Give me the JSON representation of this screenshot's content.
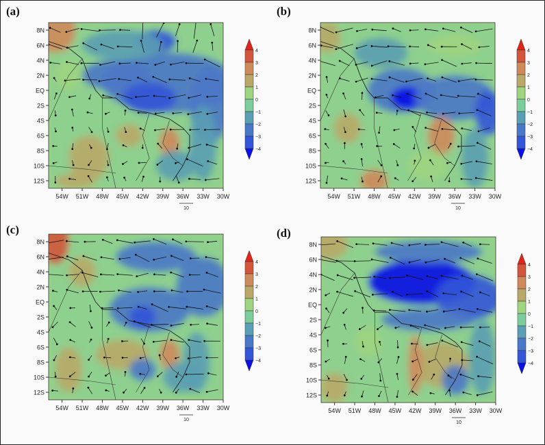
{
  "panels": [
    {
      "label": "(a)"
    },
    {
      "label": "(b)"
    },
    {
      "label": "(c)"
    },
    {
      "label": "(d)"
    }
  ],
  "axes": {
    "lat_ticks": [
      "8N",
      "6N",
      "4N",
      "2N",
      "EQ",
      "2S",
      "4S",
      "6S",
      "8S",
      "10S",
      "12S"
    ],
    "lon_ticks": [
      "54W",
      "51W",
      "48W",
      "45W",
      "42W",
      "39W",
      "36W",
      "33W",
      "30W"
    ]
  },
  "colorbar": {
    "ticks": [
      "4",
      "3",
      "2",
      "1",
      "0",
      "−1",
      "−2",
      "−3",
      "−4"
    ],
    "colors": [
      "#e02418",
      "#d2553c",
      "#cf8a5c",
      "#b9a868",
      "#9fd481",
      "#7ccc9c",
      "#5a9fb3",
      "#4a78c8",
      "#3355d8",
      "#0a10e8"
    ]
  },
  "reference_vector": {
    "label": "10"
  }
}
